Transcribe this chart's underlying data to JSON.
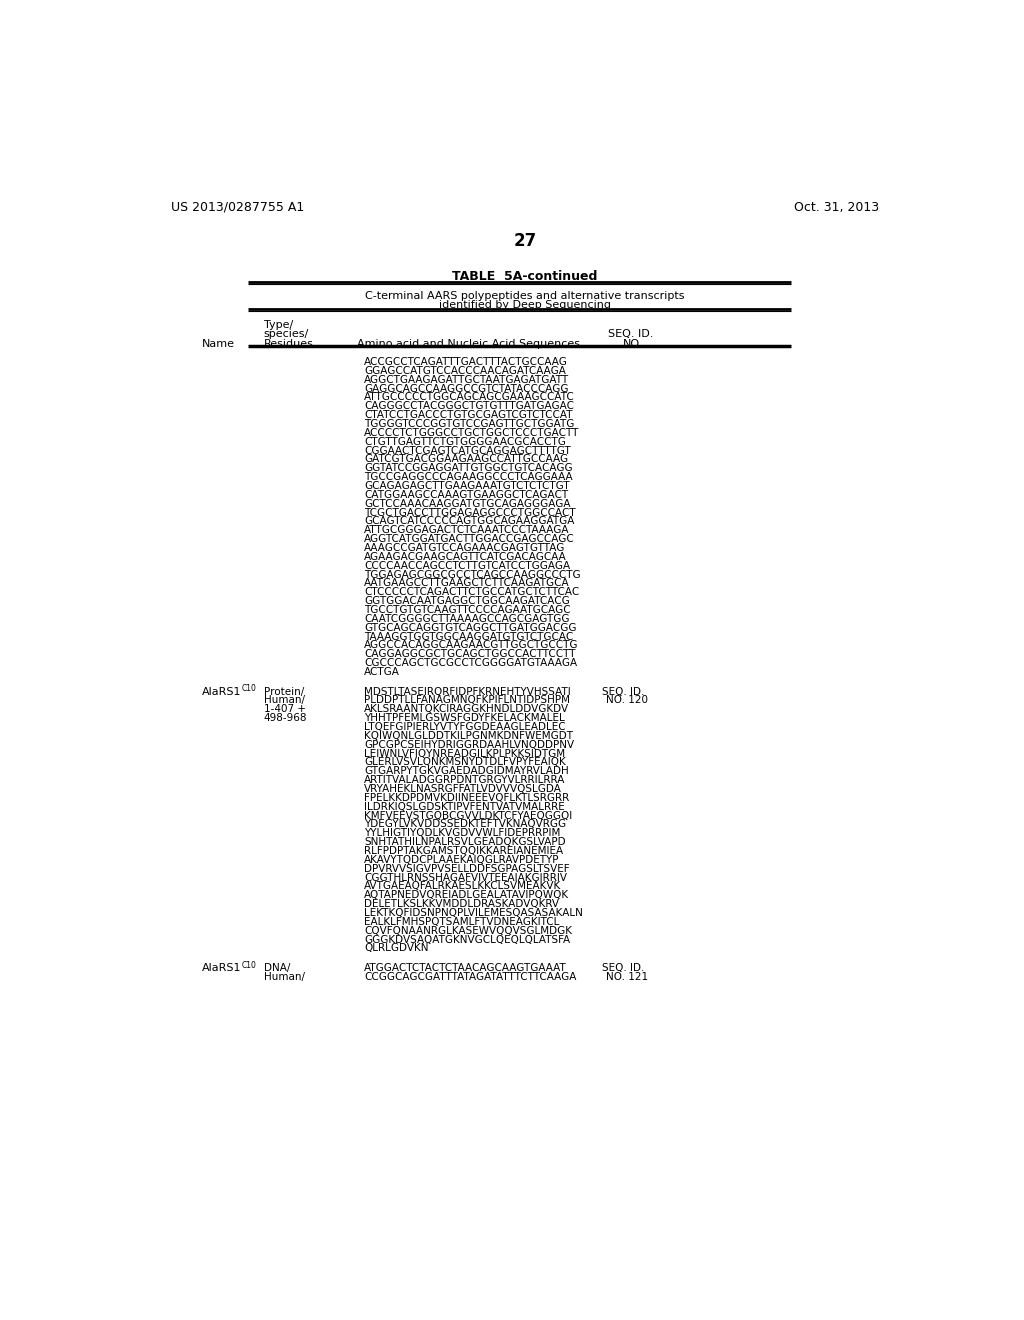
{
  "page_header_left": "US 2013/0287755 A1",
  "page_header_right": "Oct. 31, 2013",
  "page_number": "27",
  "table_title": "TABLE  5A-continued",
  "table_subtitle1": "C-terminal AARS polypeptides and alternative transcripts",
  "table_subtitle2": "identified by Deep Sequencing",
  "dna_sequence_lines": [
    "ACCGCCTCAGATTTGACTTTACTGCCAAG",
    "GGAGCCATGTCCACCCAACAGATCAAGA",
    "AGGCTGAAGAGATTGCTAATGAGATGATT",
    "GAGGCAGCCAAGGCCGTCTATACCCAGG",
    "ATTGCCCCCTGGCAGCAGCGAAAGCCATC",
    "CAGGGCCTACGGGCTGTGTTTGATGAGAC",
    "CTATCCTGACCCTGTGCGAGTCGTCTCCAT",
    "TGGGGTCCCGGTGTCCGAGTTGCTGGATG",
    "ACCCCTCTGGGCCTGCTGGCTCCCTGACTT",
    "CTGTTGAGTTCTGTGGGGAACGCACCTG",
    "CGGAACTCGAGTCATGCAGGAGCTTTTGT",
    "GATCGTGACGGAAGAAGCCATTGCCAAG",
    "GGTATCCGGAGGATTGTGGCTGTCACAGG",
    "TGCCGAGGCCCAGAAGGCCCTCAGGAAA",
    "GCAGAGAGCTTGAAGAAATGTCTCTCTGT",
    "CATGGAAGCCAAAGTGAAGGCTCAGACT",
    "GCTCCAAACAAGGATGTGCAGAGGGAGA",
    "TCGCTGACCTTGGAGAGGCCCTGGCCACT",
    "GCAGTCATCCCCCAGTGGCAGAAGGATGA",
    "ATTGCGGGAGACTCTCAAATCCCTAAAGA",
    "AGGTCATGGATGACTTGGACCGAGCCAGC",
    "AAAGCCGATGTCCAGAAACGAGTGTTAG",
    "AGAAGACGAAGCAGTTCATCGACAGCAA",
    "CCCCAACCAGCCTCTTGTCATCCTGGAGA",
    "TGGAGAGCGGCGCCTCAGCCAAGGCCCTG",
    "AATGAAGCCTTGAAGCTCTTCAAGATGCA",
    "CTCCCCCTCAGACTTCTGCCATGCTCTTCAC",
    "GGTGGACAATGAGGCTGGCAAGATCACG",
    "TGCCTGTGTCAAGTTCCCCAGAATGCAGC",
    "CAATCGGGGCTTAAAAGCCAGCGAGTGG",
    "GTGCAGCAGGTGTCAGGCTTGATGGACGG",
    "TAAAGGTGGTGGCAAGGATGTGTCTGCAC",
    "AGGCCACAGGCAAGAACGTTGGCTGCCTG",
    "CAGGAGGCGCTGCAGCTGGCCACTTCCTT",
    "CGCCCAGCTGCGCCTCGGGGATGTAAAGA",
    "ACTGA"
  ],
  "entry1_name": "AlaRS1",
  "entry1_superscript": "C10",
  "entry1_type": "Protein/",
  "entry1_species": "Human/",
  "entry1_residues1": "1-407 +",
  "entry1_residues2": "498-968",
  "entry1_seq_label": "SEQ. ID.",
  "entry1_seq_no": "NO. 120",
  "entry1_protein_lines": [
    "MDSTLTASEIRQRFIDPFKRNEHTYVHSSATI",
    "PLDDPTLLFANAGMNQFKPIFLNTIDPSHPM",
    "AKLSRAANTQKCIRAGGKHNDLDDVGKDV",
    "YHHTPFEMLGSWSFGDYFKELACKMALEL",
    "LTQEFGIPIERLYVTYFGGDEAAGLEADLEC",
    "KQIWQNLGLDDTKILPGNMKDNFWEMGDT",
    "GPCGPCSEIHYDRIGGRDAAHLVNQDDPNV",
    "LEIWNLVFIQYNREADGILKPLPKKSIDTGM",
    "GLERLVSVLQNKMSNYDTDLFVPYFEAIQK",
    "GTGARPYTGKVGAEDADGIDMAYRVLADH",
    "ARTITVALADGGRPDNTGRGYVLRRILRRA",
    "VRYAHEKLNASRGFFATLVDVVVQSLGDA",
    "FPELKKDPDMVKDIINEEEVQFLKTLSRGRR",
    "ILDRKIQSLGDSKTIPVFENTVATVMALRRE",
    "KMFVEEVSTGQBCGVVLDKTCFYAEQGGQI",
    "YDEGYLVKVDDSSEDKTEFTVKNAQVRGG",
    "YYLHIGTIYQDLKVGDVVWLFIDEPRRPIM",
    "SNHTATHILNPALRSVLGEADQKGSLVAPD",
    "RLFPDPTAKGAMSTQQIKKAREIANEMIEA",
    "AKAVYTQDCPLAAEKAIQGLRAVPDETYP",
    "DPVRVVSIGVPVSELLDDFSGPAGSLTSVEF",
    "CGGTHLRNSSHAGAFVIVTEEAIAKGIRRIV",
    "AVTGAEAQFALRKAESLKKCLSVMEAKVK",
    "AQTAPNEDVQREIADLGEALATAVIPQWQK",
    "DELETLKSLKKVMDDLDRASKADVQKRV",
    "LEKTKQFIDSNPNQPLVILEMESQASASAKALN",
    "EALKLFMHSPQTSAMLFTVDNEAGKITCL",
    "CQVFQNAANRGLKASEWVQQVSGLMDGK",
    "GGGKDVSAQATGKNVGCLQEQLQLATSFA",
    "QLRLGDVKN"
  ],
  "entry2_name": "AlaRS1",
  "entry2_superscript": "C10",
  "entry2_type": "DNA/",
  "entry2_species": "Human/",
  "entry2_seq_label": "SEQ. ID.",
  "entry2_seq_no": "NO. 121",
  "entry2_dna_lines": [
    "ATGGACTCTACTCTAACAGCAAGTGAAAT",
    "CCGGCAGCGATTTATAGATATTTCTTCAAGA"
  ],
  "background_color": "#ffffff",
  "text_color": "#000000",
  "line_color": "#000000"
}
